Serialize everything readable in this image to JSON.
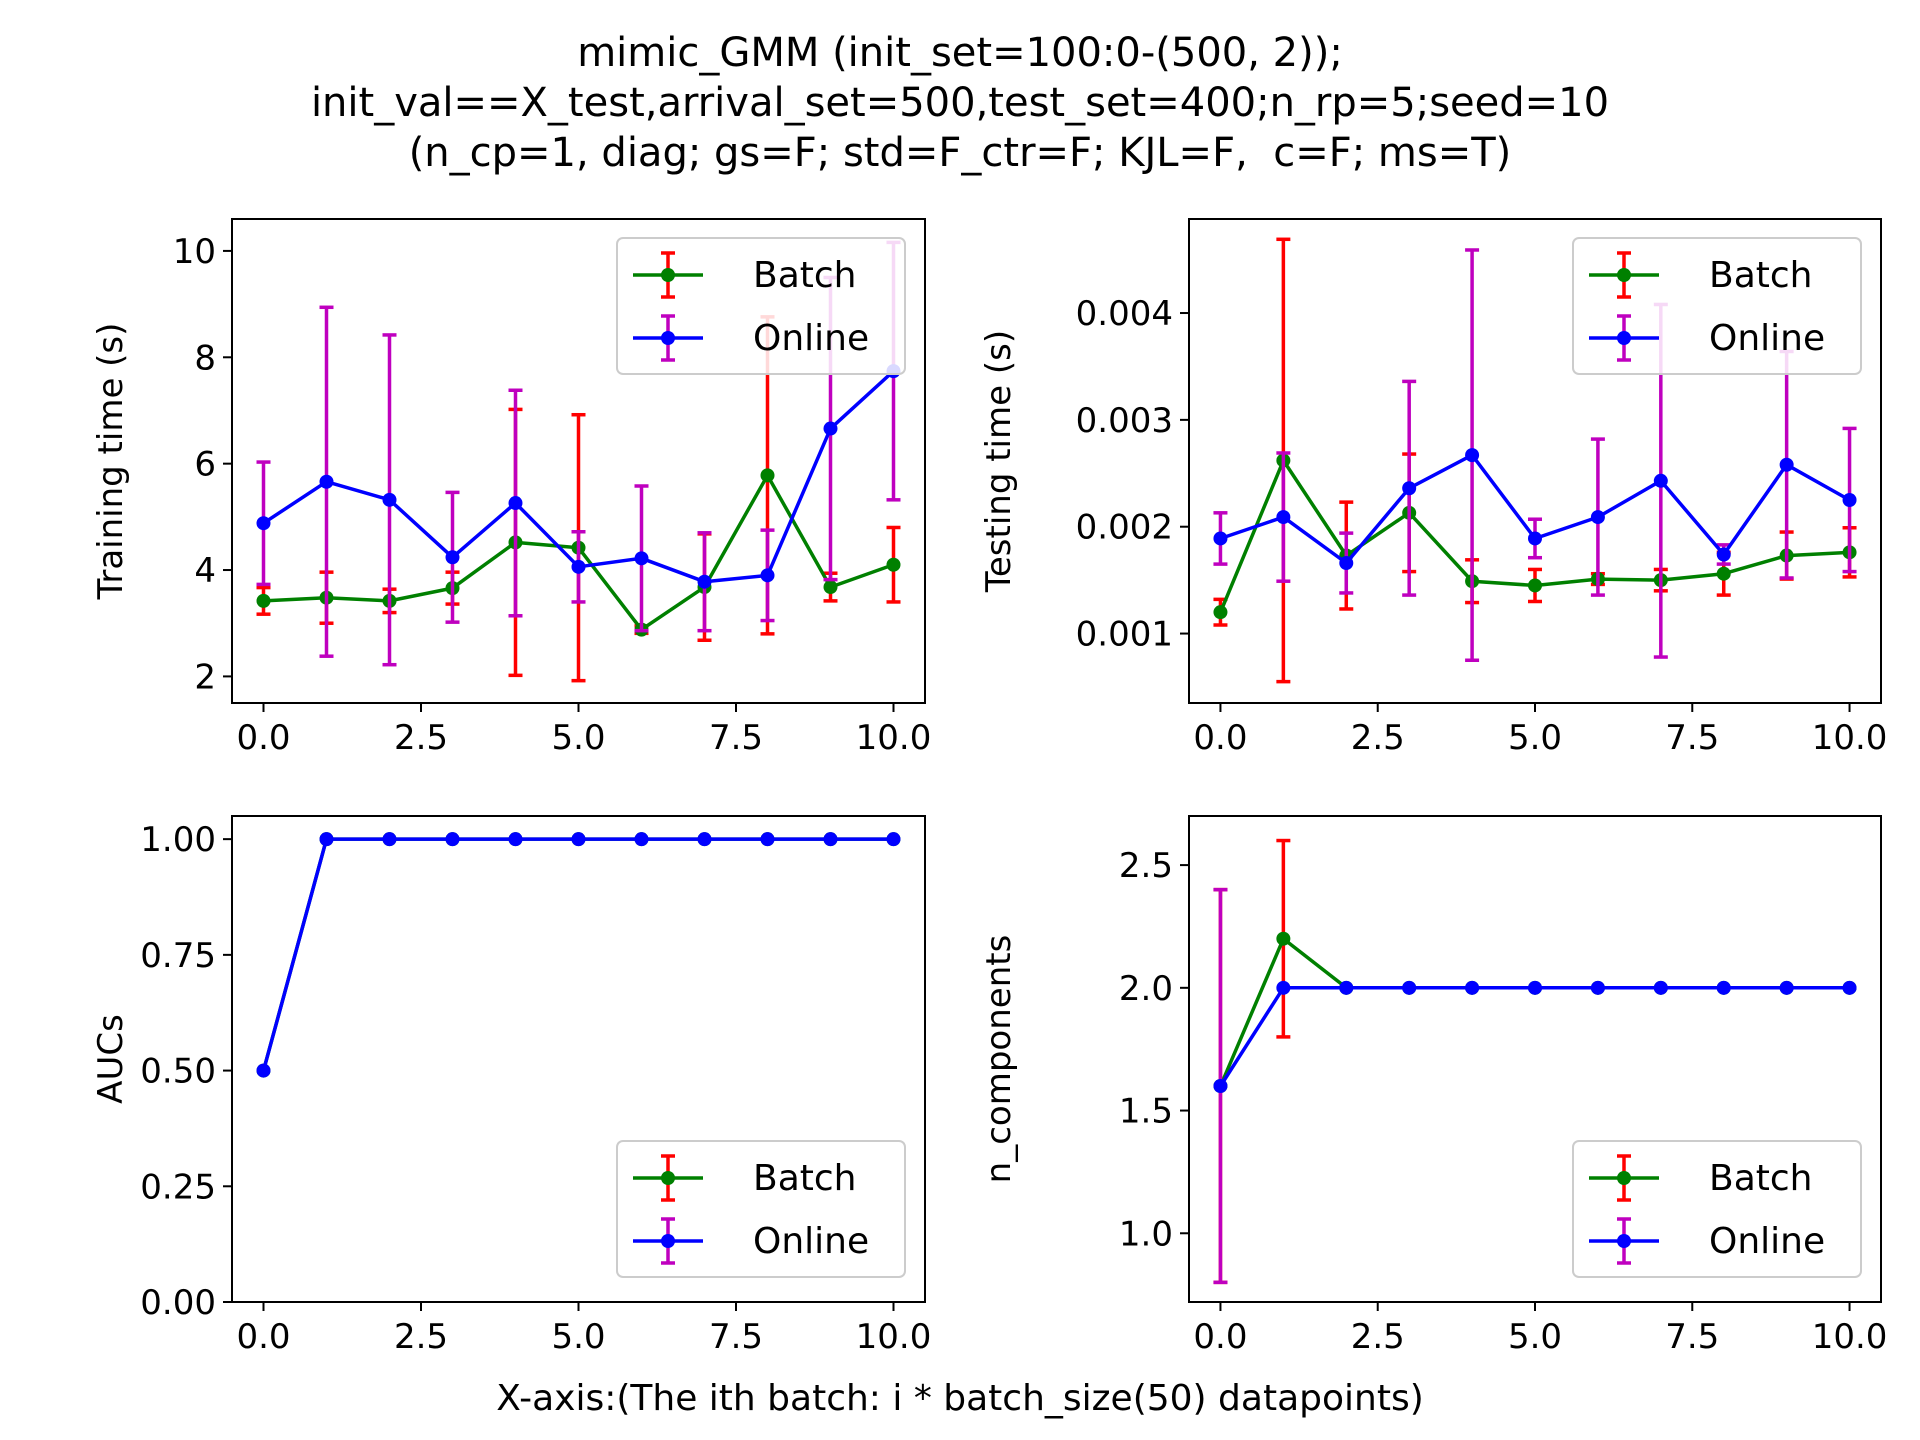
{
  "figure": {
    "title_lines": [
      "mimic_GMM (init_set=100:0-(500, 2));",
      "init_val==X_test,arrival_set=500,test_set=400;n_rp=5;seed=10",
      "(n_cp=1, diag; gs=F; std=F_ctr=F; KJL=F,  c=F; ms=T)"
    ],
    "xlabel": "X-axis:(The ith batch: i * batch_size(50) datapoints)"
  },
  "colors": {
    "batch_line": "#008000",
    "batch_err": "#ff0000",
    "online_line": "#0000ff",
    "online_err": "#bf00bf"
  },
  "chart_data": [
    {
      "type": "line",
      "ylabel": "Training time (s)",
      "xlim": [
        -0.5,
        10.5
      ],
      "ylim": [
        1.5,
        10.6
      ],
      "xticks": [
        0.0,
        2.5,
        5.0,
        7.5,
        10.0
      ],
      "xtick_labels": [
        "0.0",
        "2.5",
        "5.0",
        "7.5",
        "10.0"
      ],
      "yticks": [
        2,
        4,
        6,
        8,
        10
      ],
      "ytick_labels": [
        "2",
        "4",
        "6",
        "8",
        "10"
      ],
      "legend_position": "top-right",
      "x": [
        0,
        1,
        2,
        3,
        4,
        5,
        6,
        7,
        8,
        9,
        10
      ],
      "series": [
        {
          "name": "Batch",
          "values": [
            3.42,
            3.48,
            3.42,
            3.66,
            4.52,
            4.42,
            2.88,
            3.68,
            5.78,
            3.68,
            4.1
          ],
          "err": [
            0.25,
            0.48,
            0.22,
            0.3,
            2.5,
            2.5,
            0.07,
            1.0,
            2.98,
            0.26,
            0.7
          ]
        },
        {
          "name": "Online",
          "values": [
            4.88,
            5.66,
            5.32,
            4.24,
            5.26,
            4.06,
            4.22,
            3.78,
            3.9,
            6.66,
            7.74
          ],
          "err": [
            1.15,
            3.28,
            3.1,
            1.22,
            2.12,
            0.66,
            1.36,
            0.92,
            0.85,
            2.84,
            2.42
          ]
        }
      ]
    },
    {
      "type": "line",
      "ylabel": "Testing time (s)",
      "xlim": [
        -0.5,
        10.5
      ],
      "ylim": [
        0.00035,
        0.00488
      ],
      "xticks": [
        0.0,
        2.5,
        5.0,
        7.5,
        10.0
      ],
      "xtick_labels": [
        "0.0",
        "2.5",
        "5.0",
        "7.5",
        "10.0"
      ],
      "yticks": [
        0.001,
        0.002,
        0.003,
        0.004
      ],
      "ytick_labels": [
        "0.001",
        "0.002",
        "0.003",
        "0.004"
      ],
      "legend_position": "top-right",
      "x": [
        0,
        1,
        2,
        3,
        4,
        5,
        6,
        7,
        8,
        9,
        10
      ],
      "series": [
        {
          "name": "Batch",
          "values": [
            0.0012,
            0.00262,
            0.00173,
            0.00213,
            0.00149,
            0.00145,
            0.00151,
            0.0015,
            0.00156,
            0.00173,
            0.00176
          ],
          "err": [
            0.00012,
            0.00207,
            0.0005,
            0.00055,
            0.0002,
            0.00015,
            5e-05,
            0.0001,
            0.0002,
            0.00022,
            0.00023
          ]
        },
        {
          "name": "Online",
          "values": [
            0.00189,
            0.00209,
            0.00166,
            0.00236,
            0.00267,
            0.00189,
            0.00209,
            0.00243,
            0.00174,
            0.00258,
            0.00225
          ],
          "err": [
            0.00024,
            0.0006,
            0.00028,
            0.001,
            0.00192,
            0.00018,
            0.00073,
            0.00165,
            9e-05,
            0.00106,
            0.00067
          ]
        }
      ]
    },
    {
      "type": "line",
      "ylabel": "AUCs",
      "xlim": [
        -0.5,
        10.5
      ],
      "ylim": [
        0.0,
        1.05
      ],
      "xticks": [
        0.0,
        2.5,
        5.0,
        7.5,
        10.0
      ],
      "xtick_labels": [
        "0.0",
        "2.5",
        "5.0",
        "7.5",
        "10.0"
      ],
      "yticks": [
        0.0,
        0.25,
        0.5,
        0.75,
        1.0
      ],
      "ytick_labels": [
        "0.00",
        "0.25",
        "0.50",
        "0.75",
        "1.00"
      ],
      "legend_position": "bottom-right",
      "x": [
        0,
        1,
        2,
        3,
        4,
        5,
        6,
        7,
        8,
        9,
        10
      ],
      "series": [
        {
          "name": "Batch",
          "values": [
            0.5,
            1.0,
            1.0,
            1.0,
            1.0,
            1.0,
            1.0,
            1.0,
            1.0,
            1.0,
            1.0
          ],
          "err": [
            0,
            0,
            0,
            0,
            0,
            0,
            0,
            0,
            0,
            0,
            0
          ]
        },
        {
          "name": "Online",
          "values": [
            0.5,
            1.0,
            1.0,
            1.0,
            1.0,
            1.0,
            1.0,
            1.0,
            1.0,
            1.0,
            1.0
          ],
          "err": [
            0,
            0,
            0,
            0,
            0,
            0,
            0,
            0,
            0,
            0,
            0
          ]
        }
      ]
    },
    {
      "type": "line",
      "ylabel": "n_components",
      "xlim": [
        -0.5,
        10.5
      ],
      "ylim": [
        0.72,
        2.7
      ],
      "xticks": [
        0.0,
        2.5,
        5.0,
        7.5,
        10.0
      ],
      "xtick_labels": [
        "0.0",
        "2.5",
        "5.0",
        "7.5",
        "10.0"
      ],
      "yticks": [
        1.0,
        1.5,
        2.0,
        2.5
      ],
      "ytick_labels": [
        "1.0",
        "1.5",
        "2.0",
        "2.5"
      ],
      "legend_position": "bottom-right",
      "x": [
        0,
        1,
        2,
        3,
        4,
        5,
        6,
        7,
        8,
        9,
        10
      ],
      "series": [
        {
          "name": "Batch",
          "values": [
            1.6,
            2.2,
            2.0,
            2.0,
            2.0,
            2.0,
            2.0,
            2.0,
            2.0,
            2.0,
            2.0
          ],
          "err": [
            0.8,
            0.4,
            0,
            0,
            0,
            0,
            0,
            0,
            0,
            0,
            0
          ]
        },
        {
          "name": "Online",
          "values": [
            1.6,
            2.0,
            2.0,
            2.0,
            2.0,
            2.0,
            2.0,
            2.0,
            2.0,
            2.0,
            2.0
          ],
          "err": [
            0.8,
            0,
            0,
            0,
            0,
            0,
            0,
            0,
            0,
            0,
            0
          ]
        }
      ]
    }
  ]
}
